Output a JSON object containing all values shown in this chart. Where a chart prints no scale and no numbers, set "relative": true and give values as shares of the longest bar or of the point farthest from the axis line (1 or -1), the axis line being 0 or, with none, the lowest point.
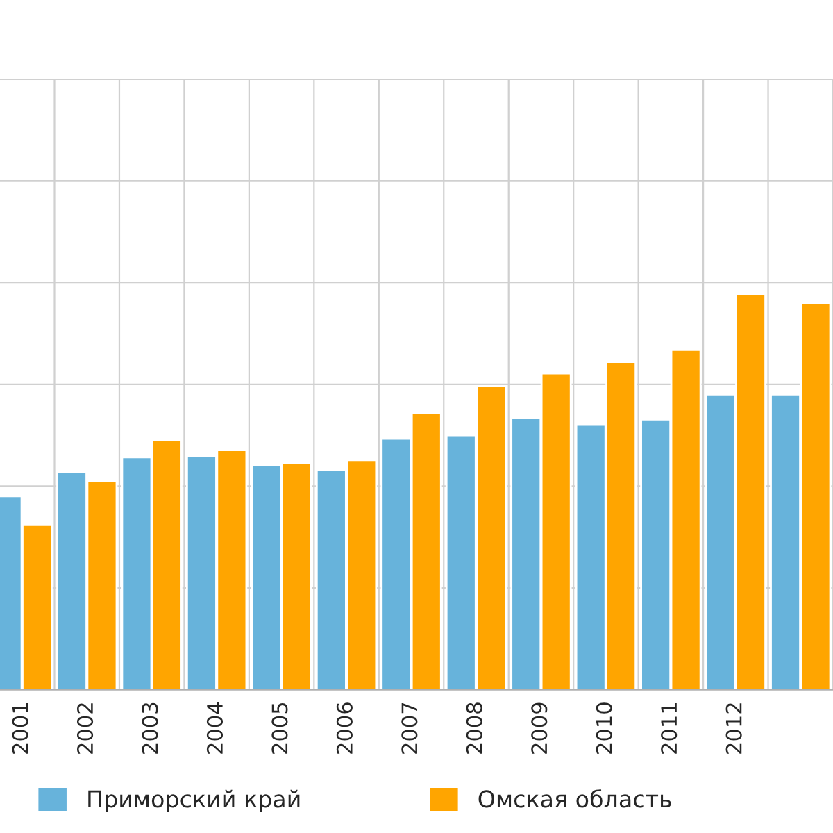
{
  "chart_data": {
    "type": "bar",
    "relative": true,
    "categories": [
      "2001",
      "2002",
      "2003",
      "2004",
      "2005",
      "2006",
      "2007",
      "2008",
      "2009",
      "2010",
      "2011",
      "2012",
      null
    ],
    "series": [
      {
        "name": "Приморский край",
        "color": "#67b3db",
        "values": [
          0.489,
          0.549,
          0.587,
          0.59,
          0.568,
          0.556,
          0.634,
          0.643,
          0.687,
          0.671,
          0.683,
          0.746,
          0.746
        ]
      },
      {
        "name": "Омская область",
        "color": "#ffa500",
        "values": [
          0.416,
          0.528,
          0.63,
          0.607,
          0.573,
          0.58,
          0.7,
          0.768,
          0.799,
          0.828,
          0.86,
          1.0,
          0.977
        ]
      }
    ],
    "grid": true,
    "legend": "bottom"
  }
}
